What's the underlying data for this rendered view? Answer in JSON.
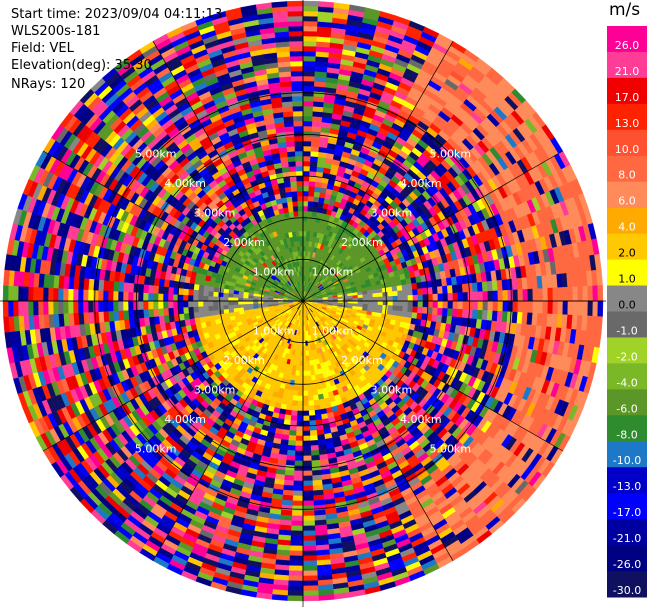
{
  "header": {
    "start_time": "Start time: 2023/09/04 04:11:13",
    "instrument": "WLS200s-181",
    "field": "Field: VEL",
    "elevation": "Elevation(deg): 35.30",
    "nrays": "NRays: 120"
  },
  "chart_data": {
    "type": "heatmap",
    "subtype": "polar-ppi",
    "field": "VEL",
    "units": "m/s",
    "nrays": 120,
    "range_rings_km": [
      1.0,
      2.0,
      3.0,
      4.0,
      5.0
    ],
    "range_ring_labels": [
      "1.00km",
      "2.00km",
      "3.00km",
      "4.00km",
      "5.00km"
    ],
    "max_range_km": 7.2,
    "colorbar": {
      "title": "m/s",
      "vmin": -30,
      "vmax": 30,
      "tick_labels": [
        "26.0",
        "21.0",
        "17.0",
        "13.0",
        "10.0",
        "8.0",
        "6.0",
        "4.0",
        "2.0",
        "1.0",
        "0.0",
        "-1.0",
        "-2.0",
        "-4.0",
        "-6.0",
        "-8.0",
        "-10.0",
        "-13.0",
        "-17.0",
        "-21.0",
        "-26.0",
        "-30.0"
      ],
      "bins": [
        {
          "lo": 26,
          "hi": 30,
          "color": "#ff0096"
        },
        {
          "lo": 21,
          "hi": 26,
          "color": "#ff3c96"
        },
        {
          "lo": 17,
          "hi": 21,
          "color": "#f00000"
        },
        {
          "lo": 13,
          "hi": 17,
          "color": "#ff2200"
        },
        {
          "lo": 10,
          "hi": 13,
          "color": "#ff5030"
        },
        {
          "lo": 8,
          "hi": 10,
          "color": "#ff6840"
        },
        {
          "lo": 6,
          "hi": 8,
          "color": "#ff8a5a"
        },
        {
          "lo": 4,
          "hi": 6,
          "color": "#ffaa00"
        },
        {
          "lo": 2,
          "hi": 4,
          "color": "#ffc800"
        },
        {
          "lo": 1,
          "hi": 2,
          "color": "#ffff00"
        },
        {
          "lo": 0,
          "hi": 1,
          "color": "#878787"
        },
        {
          "lo": -1,
          "hi": 0,
          "color": "#696969"
        },
        {
          "lo": -2,
          "hi": -1,
          "color": "#a0d228"
        },
        {
          "lo": -4,
          "hi": -2,
          "color": "#7ab828"
        },
        {
          "lo": -6,
          "hi": -4,
          "color": "#5a9628"
        },
        {
          "lo": -8,
          "hi": -6,
          "color": "#2e8b2e"
        },
        {
          "lo": -10,
          "hi": -8,
          "color": "#1e78c8"
        },
        {
          "lo": -13,
          "hi": -10,
          "color": "#0000c8"
        },
        {
          "lo": -17,
          "hi": -13,
          "color": "#0000ff"
        },
        {
          "lo": -21,
          "hi": -17,
          "color": "#0000a0"
        },
        {
          "lo": -26,
          "hi": -21,
          "color": "#000082"
        },
        {
          "lo": -30,
          "hi": -26,
          "color": "#101060"
        }
      ]
    },
    "inner_region": {
      "note": "coherent velocities within ~2.5km: north half green (negative), south half yellow/orange (positive)",
      "north_value": -5,
      "south_value": 3,
      "east_value": 0.5,
      "outer_east_value": 8
    },
    "grid": true
  }
}
